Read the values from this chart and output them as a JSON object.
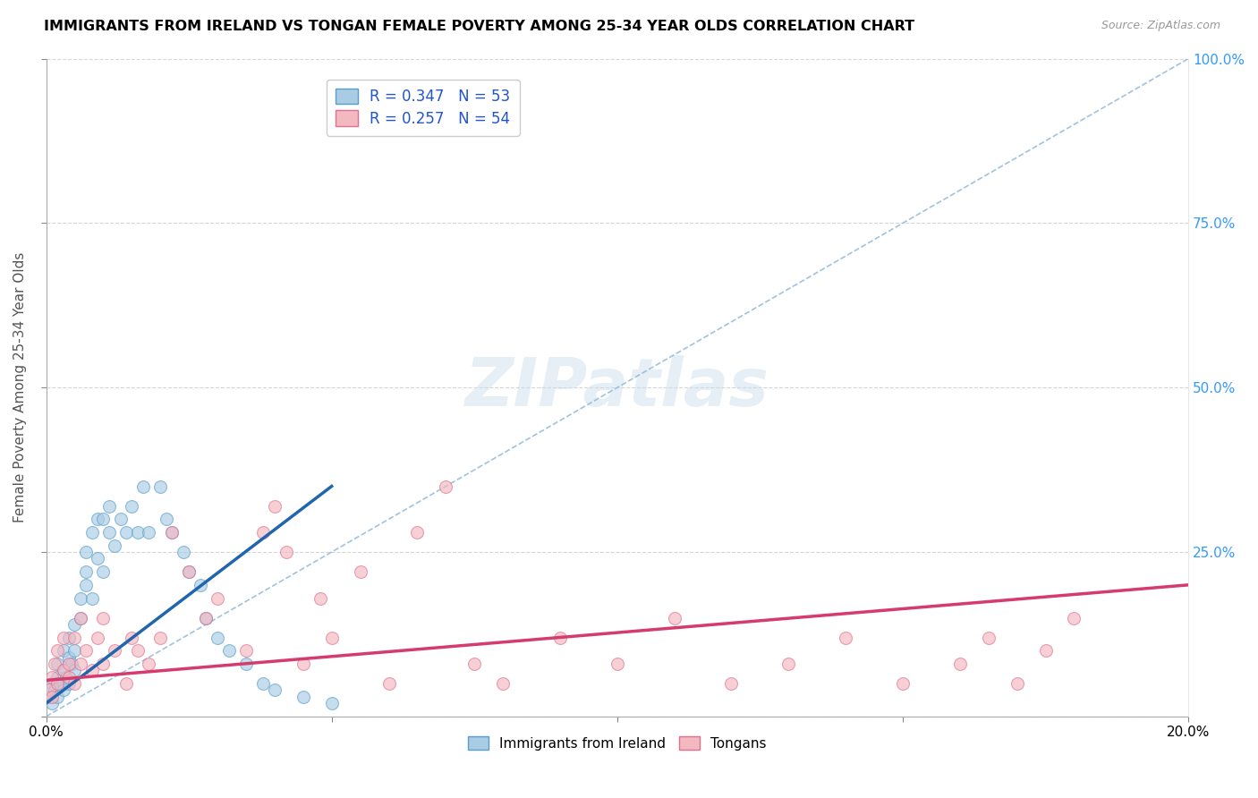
{
  "title": "IMMIGRANTS FROM IRELAND VS TONGAN FEMALE POVERTY AMONG 25-34 YEAR OLDS CORRELATION CHART",
  "source": "Source: ZipAtlas.com",
  "ylabel": "Female Poverty Among 25-34 Year Olds",
  "xlim": [
    0.0,
    0.2
  ],
  "ylim": [
    0.0,
    1.0
  ],
  "ireland_color": "#a8cce4",
  "ireland_edge": "#5b9ec9",
  "tongan_color": "#f4b8c1",
  "tongan_edge": "#e07090",
  "ireland_line_color": "#2166ac",
  "tongan_line_color": "#d63b6e",
  "dash_color": "#90b8d8",
  "r_ireland": 0.347,
  "n_ireland": 53,
  "r_tongan": 0.257,
  "n_tongan": 54,
  "legend_label_ireland": "Immigrants from Ireland",
  "legend_label_tongan": "Tongans",
  "watermark": "ZIPatlas",
  "ireland_x": [
    0.0005,
    0.001,
    0.001,
    0.0015,
    0.002,
    0.002,
    0.002,
    0.0025,
    0.003,
    0.003,
    0.003,
    0.0035,
    0.004,
    0.004,
    0.004,
    0.0045,
    0.005,
    0.005,
    0.005,
    0.006,
    0.006,
    0.007,
    0.007,
    0.007,
    0.008,
    0.008,
    0.009,
    0.009,
    0.01,
    0.01,
    0.011,
    0.011,
    0.012,
    0.013,
    0.014,
    0.015,
    0.016,
    0.017,
    0.018,
    0.02,
    0.021,
    0.022,
    0.024,
    0.025,
    0.027,
    0.028,
    0.03,
    0.032,
    0.035,
    0.038,
    0.04,
    0.045,
    0.05
  ],
  "ireland_y": [
    0.03,
    0.05,
    0.02,
    0.04,
    0.06,
    0.03,
    0.08,
    0.05,
    0.07,
    0.04,
    0.1,
    0.06,
    0.05,
    0.09,
    0.12,
    0.08,
    0.1,
    0.14,
    0.07,
    0.15,
    0.18,
    0.2,
    0.25,
    0.22,
    0.28,
    0.18,
    0.3,
    0.24,
    0.3,
    0.22,
    0.28,
    0.32,
    0.26,
    0.3,
    0.28,
    0.32,
    0.28,
    0.35,
    0.28,
    0.35,
    0.3,
    0.28,
    0.25,
    0.22,
    0.2,
    0.15,
    0.12,
    0.1,
    0.08,
    0.05,
    0.04,
    0.03,
    0.02
  ],
  "tongan_x": [
    0.0005,
    0.001,
    0.001,
    0.0015,
    0.002,
    0.002,
    0.003,
    0.003,
    0.004,
    0.004,
    0.005,
    0.005,
    0.006,
    0.006,
    0.007,
    0.008,
    0.009,
    0.01,
    0.01,
    0.012,
    0.014,
    0.015,
    0.016,
    0.018,
    0.02,
    0.022,
    0.025,
    0.028,
    0.03,
    0.035,
    0.038,
    0.04,
    0.042,
    0.045,
    0.048,
    0.05,
    0.055,
    0.06,
    0.065,
    0.07,
    0.075,
    0.08,
    0.09,
    0.1,
    0.11,
    0.12,
    0.13,
    0.14,
    0.15,
    0.16,
    0.165,
    0.17,
    0.175,
    0.18
  ],
  "tongan_y": [
    0.04,
    0.06,
    0.03,
    0.08,
    0.05,
    0.1,
    0.07,
    0.12,
    0.06,
    0.08,
    0.05,
    0.12,
    0.08,
    0.15,
    0.1,
    0.07,
    0.12,
    0.08,
    0.15,
    0.1,
    0.05,
    0.12,
    0.1,
    0.08,
    0.12,
    0.28,
    0.22,
    0.15,
    0.18,
    0.1,
    0.28,
    0.32,
    0.25,
    0.08,
    0.18,
    0.12,
    0.22,
    0.05,
    0.28,
    0.35,
    0.08,
    0.05,
    0.12,
    0.08,
    0.15,
    0.05,
    0.08,
    0.12,
    0.05,
    0.08,
    0.12,
    0.05,
    0.1,
    0.15
  ]
}
